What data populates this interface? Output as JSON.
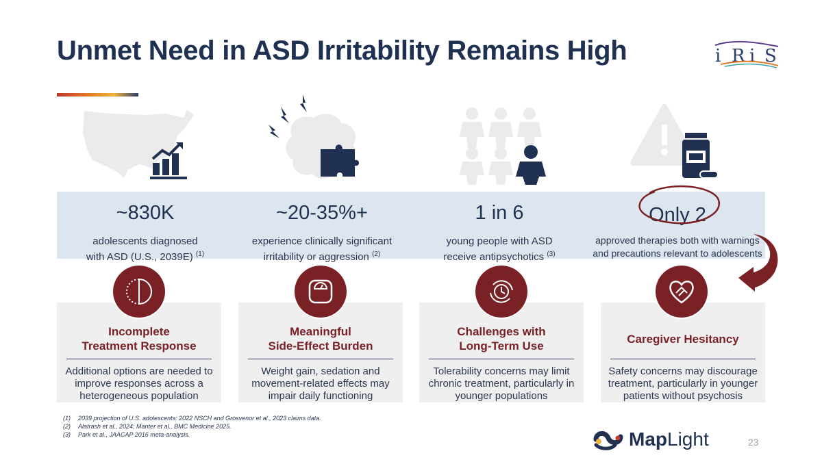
{
  "slide": {
    "title": "Unmet Need in ASD Irritability Remains High",
    "page_number": "23",
    "brand_left": "IRIS",
    "brand_right": "MapLight"
  },
  "stats": [
    {
      "value": "~830K",
      "desc_line1": "adolescents diagnosed",
      "desc_line2": "with ASD (U.S., 2039E)",
      "ref": "(1)",
      "icon": "chart-up-icon"
    },
    {
      "value": "~20-35%+",
      "desc_line1": "experience clinically significant",
      "desc_line2": "irritability or aggression",
      "ref": "(2)",
      "icon": "brain-puzzle-icon"
    },
    {
      "value": "1 in 6",
      "desc_line1": "young people with ASD",
      "desc_line2": "receive antipsychotics",
      "ref": "(3)",
      "icon": "people-icon"
    },
    {
      "value": "Only 2",
      "desc_line1": "approved therapies both with warnings",
      "desc_line2": "and precautions relevant to adolescents",
      "ref": "",
      "icon": "medicine-bottle-icon"
    }
  ],
  "cards": [
    {
      "title_line1": "Incomplete",
      "title_line2": "Treatment Response",
      "text_line1": "Additional options are needed to",
      "text_line2": "improve responses across a",
      "text_line3": "heterogeneous population",
      "icon": "half-circle-icon"
    },
    {
      "title_line1": "Meaningful",
      "title_line2": "Side-Effect Burden",
      "text_line1": "Weight gain, sedation and",
      "text_line2": "movement-related effects may",
      "text_line3": "impair daily functioning",
      "icon": "scale-icon"
    },
    {
      "title_line1": "Challenges with",
      "title_line2": "Long-Term Use",
      "text_line1": "Tolerability concerns may limit",
      "text_line2": "chronic treatment, particularly in",
      "text_line3": "younger populations",
      "icon": "clock-cycle-icon"
    },
    {
      "title_line1": "Caregiver Hesitancy",
      "title_line2": "",
      "text_line1": "Safety concerns may discourage",
      "text_line2": "treatment, particularly in younger",
      "text_line3": "patients without psychosis",
      "icon": "heart-hands-icon"
    }
  ],
  "footnotes": [
    {
      "num": "(1)",
      "text": "2039 projection of U.S. adolescents; 2022 NSCH and Grosvenor et al., 2023 claims data."
    },
    {
      "num": "(2)",
      "text": "Alatrash et al., 2024; Manter et al., BMC Medicine 2025."
    },
    {
      "num": "(3)",
      "text": "Park et al., JAACAP 2016 meta-analysis."
    }
  ],
  "colors": {
    "navy": "#1f3050",
    "maroon": "#7a2126",
    "band": "#dde6ee",
    "card": "#efefef",
    "icon_grey": "#ececec"
  }
}
